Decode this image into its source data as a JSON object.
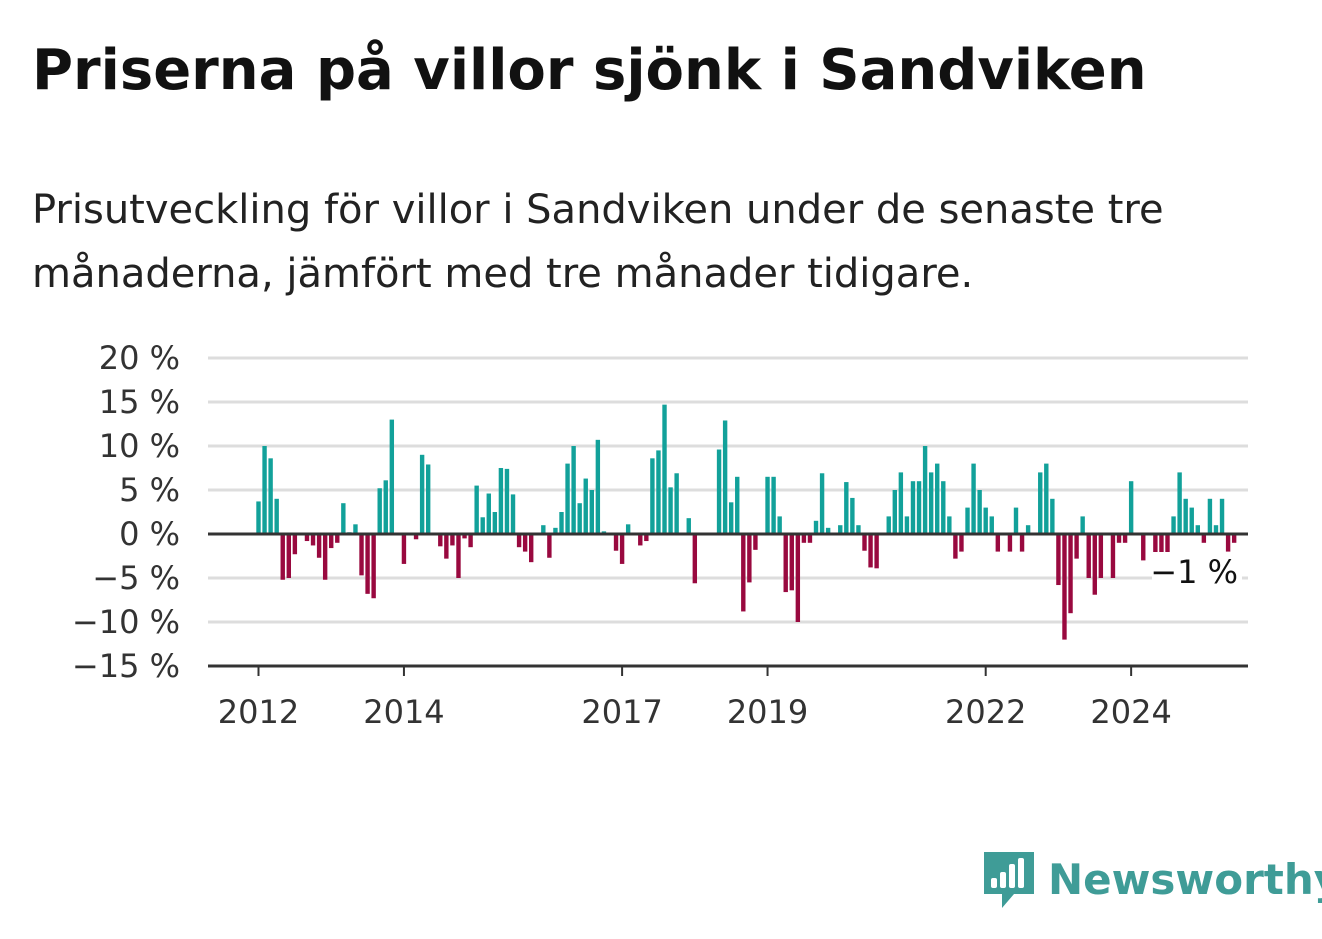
{
  "title": "Priserna på villor sjönk i Sandviken",
  "subtitle": "Prisutveckling för villor i Sandviken under de senaste tre månaderna, jämfört med tre månader tidigare.",
  "brand": {
    "name": "Newsworthy",
    "icon": "newsworthy-bar-chart-icon",
    "color": "#3f9c97"
  },
  "colors": {
    "positive": "#12a19a",
    "negative": "#99093f",
    "grid": "#dddddd",
    "axis": "#333333"
  },
  "chart_data": {
    "type": "bar",
    "ylim": [
      -15,
      20
    ],
    "y_ticks": [
      20,
      15,
      10,
      5,
      0,
      -5,
      -10,
      -15
    ],
    "y_tick_labels": [
      "20 %",
      "15 %",
      "10 %",
      "5 %",
      "0 %",
      "−5 %",
      "−10 %",
      "−15 %"
    ],
    "x_ticks": [
      {
        "index": 0,
        "label": "2012"
      },
      {
        "index": 24,
        "label": "2014"
      },
      {
        "index": 60,
        "label": "2017"
      },
      {
        "index": 84,
        "label": "2019"
      },
      {
        "index": 120,
        "label": "2022"
      },
      {
        "index": 144,
        "label": "2024"
      }
    ],
    "grid": true,
    "end_label": "−1 %",
    "values": [
      3.7,
      10.0,
      8.6,
      4.0,
      -5.2,
      -5.0,
      -2.3,
      0,
      -0.8,
      -1.3,
      -2.7,
      -5.2,
      -1.6,
      -1.0,
      3.5,
      0.2,
      1.1,
      -4.7,
      -6.8,
      -7.3,
      5.2,
      6.1,
      13.0,
      0,
      -3.4,
      0,
      -0.6,
      9.0,
      7.9,
      0,
      -1.4,
      -2.8,
      -1.3,
      -5.0,
      -0.5,
      -1.5,
      5.5,
      1.9,
      4.6,
      2.5,
      7.5,
      7.4,
      4.5,
      -1.5,
      -2.0,
      -3.2,
      0,
      1.0,
      -2.7,
      0.7,
      2.5,
      8.0,
      10.0,
      3.5,
      6.3,
      5.0,
      10.7,
      0.3,
      0,
      -1.9,
      -3.4,
      1.1,
      0,
      -1.3,
      -0.8,
      8.6,
      9.5,
      14.7,
      5.3,
      6.9,
      0,
      1.8,
      -5.6,
      0,
      0,
      0,
      9.6,
      12.9,
      3.6,
      6.5,
      -8.8,
      -5.5,
      -1.8,
      0,
      6.5,
      6.5,
      2.0,
      -6.6,
      -6.4,
      -10.0,
      -1.0,
      -1.0,
      1.5,
      6.9,
      0.7,
      0,
      1.0,
      5.9,
      4.1,
      1.0,
      -1.9,
      -3.8,
      -3.9,
      0,
      2.0,
      5.0,
      7.0,
      2.0,
      6.0,
      6.0,
      10.0,
      7.0,
      8.0,
      6.0,
      2.0,
      -2.8,
      -2.0,
      3.0,
      8.0,
      5.0,
      3.0,
      2.0,
      -2.0,
      0,
      -2.0,
      3.0,
      -2.0,
      1.0,
      0,
      7.0,
      8.0,
      4.0,
      -5.8,
      -12.0,
      -9.0,
      -2.8,
      2.0,
      -5.0,
      -6.9,
      -5.0,
      0,
      -5.0,
      -1.0,
      -1.0,
      6.0,
      0,
      -3.0,
      0,
      -3.0,
      -5.8,
      -3.0,
      2.0,
      7.0,
      4.0,
      3.0,
      1.0,
      -1.0,
      4.0,
      1.0,
      4.0,
      -2.0,
      -1.0
    ]
  }
}
